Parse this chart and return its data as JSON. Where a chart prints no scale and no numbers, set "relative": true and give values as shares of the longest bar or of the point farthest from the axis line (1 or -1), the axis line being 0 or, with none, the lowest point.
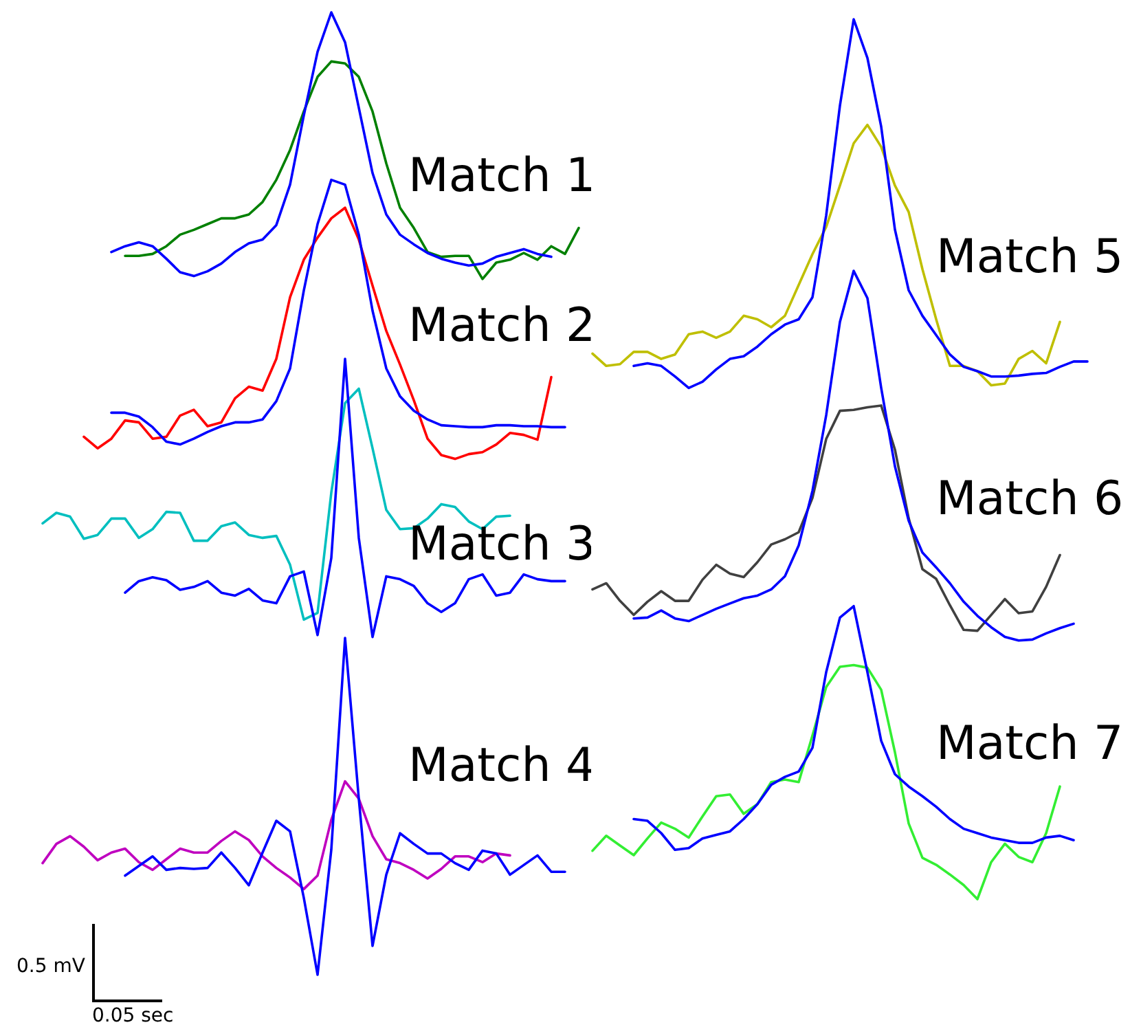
{
  "chart_data": [
    {
      "type": "line",
      "relative": true,
      "categories": [
        null,
        null,
        null,
        null,
        null,
        null,
        null,
        null,
        null,
        null,
        null,
        null,
        null,
        null,
        null,
        null,
        null,
        null,
        null,
        null,
        null,
        null,
        null,
        null,
        null,
        null,
        null,
        null,
        null,
        null,
        null,
        null,
        null,
        null,
        null,
        null,
        null,
        null,
        null,
        null
      ],
      "series": [
        {
          "color": "#008000",
          "values": [
            null,
            null,
            null,
            null,
            null,
            null,
            0.747,
            0.747,
            0.749,
            0.757,
            0.769,
            0.774,
            0.78,
            0.786,
            0.786,
            0.79,
            0.803,
            0.826,
            0.857,
            0.897,
            0.933,
            0.949,
            0.947,
            0.933,
            0.897,
            0.843,
            0.797,
            0.776,
            0.751,
            0.746,
            0.747,
            0.747,
            0.723,
            0.74,
            0.743,
            0.75,
            0.743,
            0.757,
            0.749,
            0.776
          ]
        },
        {
          "color": "#0000ff",
          "values": [
            null,
            null,
            null,
            null,
            null,
            0.751,
            0.757,
            0.761,
            0.757,
            0.744,
            0.73,
            0.726,
            0.731,
            0.739,
            0.751,
            0.76,
            0.764,
            0.779,
            0.821,
            0.893,
            0.959,
            1.0,
            0.969,
            0.901,
            0.833,
            0.79,
            0.769,
            0.759,
            0.75,
            0.744,
            0.74,
            0.737,
            0.739,
            0.746,
            0.75,
            0.754,
            0.749,
            0.746,
            null,
            null
          ]
        },
        {
          "color": "#ff0000",
          "values": [
            null,
            null,
            null,
            0.559,
            0.547,
            0.557,
            0.576,
            0.574,
            0.557,
            0.559,
            0.581,
            0.587,
            0.57,
            0.574,
            0.599,
            0.611,
            0.607,
            0.64,
            0.704,
            0.743,
            0.766,
            0.786,
            0.797,
            0.764,
            0.716,
            0.669,
            0.634,
            0.597,
            0.557,
            0.54,
            0.536,
            0.541,
            0.543,
            0.551,
            0.563,
            0.561,
            0.556,
            0.621,
            null,
            null
          ]
        },
        {
          "color": "#0000ff",
          "values": [
            null,
            null,
            null,
            null,
            null,
            0.584,
            0.584,
            0.58,
            0.569,
            0.554,
            0.551,
            0.557,
            0.564,
            0.57,
            0.574,
            0.574,
            0.577,
            0.596,
            0.63,
            0.711,
            0.78,
            0.826,
            0.821,
            0.769,
            0.69,
            0.63,
            0.601,
            0.586,
            0.577,
            0.571,
            0.57,
            0.569,
            0.569,
            0.571,
            0.571,
            0.57,
            0.57,
            0.569,
            0.569,
            null
          ]
        },
        {
          "color": "#00bfbf",
          "values": [
            0.469,
            0.48,
            0.476,
            0.453,
            0.457,
            0.474,
            0.474,
            0.454,
            0.463,
            0.481,
            0.48,
            0.451,
            0.451,
            0.466,
            0.47,
            0.457,
            0.454,
            0.456,
            0.426,
            0.369,
            0.376,
            0.501,
            0.594,
            0.609,
            0.547,
            0.483,
            0.463,
            0.464,
            0.474,
            0.489,
            0.486,
            0.471,
            0.463,
            0.476,
            0.477,
            null,
            null,
            null,
            null,
            null
          ]
        },
        {
          "color": "#0000ff",
          "values": [
            null,
            null,
            null,
            null,
            null,
            null,
            0.397,
            0.409,
            0.413,
            0.41,
            0.4,
            0.403,
            0.409,
            0.397,
            0.394,
            0.401,
            0.389,
            0.386,
            0.414,
            0.419,
            0.353,
            0.433,
            0.64,
            0.454,
            0.351,
            0.414,
            0.411,
            0.404,
            0.386,
            0.377,
            0.386,
            0.411,
            0.416,
            0.394,
            0.397,
            0.416,
            0.411,
            0.409,
            0.409,
            null
          ]
        },
        {
          "color": "#bf00bf",
          "values": [
            0.116,
            0.136,
            0.144,
            0.133,
            0.119,
            0.127,
            0.131,
            0.117,
            0.109,
            0.12,
            0.131,
            0.127,
            0.127,
            0.139,
            0.149,
            0.14,
            0.123,
            0.111,
            0.101,
            0.089,
            0.103,
            0.161,
            0.201,
            0.183,
            0.144,
            0.12,
            0.116,
            0.109,
            0.1,
            0.11,
            0.123,
            0.123,
            0.117,
            0.126,
            0.124,
            null,
            null,
            null,
            null,
            null
          ]
        },
        {
          "color": "#0000ff",
          "values": [
            null,
            null,
            null,
            null,
            null,
            null,
            0.103,
            0.113,
            0.123,
            0.109,
            0.111,
            0.11,
            0.111,
            0.127,
            0.111,
            0.093,
            0.127,
            0.16,
            0.149,
            0.08,
            0,
            0.13,
            0.35,
            0.183,
            0.03,
            0.104,
            0.147,
            0.136,
            0.126,
            0.126,
            0.116,
            0.109,
            0.129,
            0.126,
            0.104,
            0.114,
            0.124,
            0.107,
            0.107,
            null
          ]
        }
      ],
      "annotations": [
        "Match 1",
        "Match 2",
        "Match 3",
        "Match 4",
        "0.5 mV",
        "0.05 sec"
      ]
    },
    {
      "type": "line",
      "relative": true,
      "categories": [
        null,
        null,
        null,
        null,
        null,
        null,
        null,
        null,
        null,
        null,
        null,
        null,
        null,
        null,
        null,
        null,
        null,
        null,
        null,
        null,
        null,
        null,
        null,
        null,
        null,
        null,
        null,
        null,
        null,
        null,
        null,
        null,
        null,
        null,
        null,
        null,
        null
      ],
      "series": [
        {
          "color": "#bfbf00",
          "values": [
            0.62,
            0.606,
            0.608,
            0.622,
            0.622,
            0.614,
            0.619,
            0.642,
            0.645,
            0.638,
            0.645,
            0.663,
            0.659,
            0.65,
            0.663,
            0.698,
            0.733,
            0.764,
            0.811,
            0.859,
            0.88,
            0.855,
            0.811,
            0.781,
            0.716,
            0.659,
            0.606,
            0.606,
            0.6,
            0.584,
            0.586,
            0.614,
            0.623,
            0.609,
            0.656,
            null,
            null
          ]
        },
        {
          "color": "#0000ff",
          "values": [
            null,
            null,
            null,
            0.606,
            0.609,
            0.606,
            0.594,
            0.581,
            0.588,
            0.602,
            0.614,
            0.617,
            0.628,
            0.642,
            0.653,
            0.659,
            0.684,
            0.777,
            0.902,
            1.0,
            0.956,
            0.878,
            0.761,
            0.692,
            0.663,
            0.641,
            0.619,
            0.605,
            0.6,
            0.594,
            0.594,
            0.595,
            0.597,
            0.598,
            0.605,
            0.611,
            0.611
          ]
        },
        {
          "color": "#404040",
          "values": [
            0.352,
            0.359,
            0.339,
            0.323,
            0.338,
            0.35,
            0.339,
            0.339,
            0.363,
            0.38,
            0.37,
            0.366,
            0.383,
            0.403,
            0.409,
            0.417,
            0.456,
            0.523,
            0.555,
            0.556,
            0.559,
            0.561,
            0.511,
            0.433,
            0.375,
            0.364,
            0.334,
            0.306,
            0.305,
            0.323,
            0.341,
            0.325,
            0.327,
            0.355,
            0.391,
            null,
            null
          ]
        },
        {
          "color": "#0000ff",
          "values": [
            null,
            null,
            null,
            0.319,
            0.32,
            0.328,
            0.319,
            0.316,
            0.323,
            0.33,
            0.336,
            0.342,
            0.345,
            0.352,
            0.367,
            0.402,
            0.464,
            0.55,
            0.656,
            0.714,
            0.683,
            0.581,
            0.492,
            0.43,
            0.394,
            0.377,
            0.359,
            0.338,
            0.322,
            0.309,
            0.298,
            0.294,
            0.295,
            0.302,
            0.308,
            0.313,
            null
          ]
        },
        {
          "color": "#33ee33",
          "values": [
            0.055,
            0.072,
            0.061,
            0.05,
            0.069,
            0.087,
            0.08,
            0.07,
            0.094,
            0.117,
            0.119,
            0.097,
            0.108,
            0.133,
            0.136,
            0.133,
            0.186,
            0.241,
            0.264,
            0.266,
            0.263,
            0.238,
            0.167,
            0.086,
            0.047,
            0.039,
            0.028,
            0.016,
            0,
            0.042,
            0.063,
            0.048,
            0.042,
            0.075,
            0.128,
            null,
            null
          ]
        },
        {
          "color": "#0000ff",
          "values": [
            null,
            null,
            null,
            0.091,
            0.089,
            0.075,
            0.056,
            0.058,
            0.069,
            0.073,
            0.077,
            0.091,
            0.108,
            0.13,
            0.139,
            0.145,
            0.172,
            0.258,
            0.32,
            0.333,
            0.258,
            0.18,
            0.142,
            0.128,
            0.117,
            0.105,
            0.091,
            0.08,
            0.075,
            0.07,
            0.067,
            0.064,
            0.064,
            0.07,
            0.072,
            0.067,
            null
          ]
        }
      ],
      "annotations": [
        "Match 5",
        "Match 6",
        "Match 7"
      ]
    }
  ]
}
